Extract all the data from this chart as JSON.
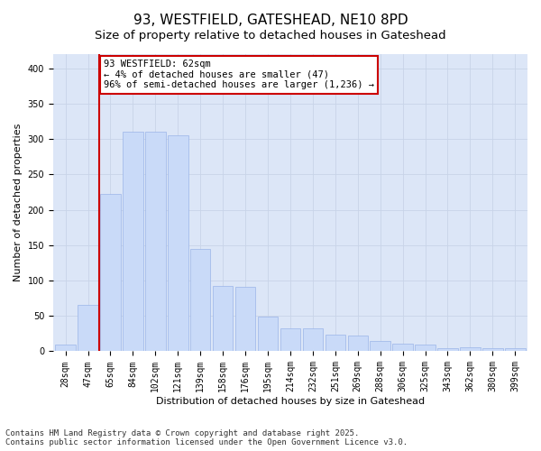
{
  "title": "93, WESTFIELD, GATESHEAD, NE10 8PD",
  "subtitle": "Size of property relative to detached houses in Gateshead",
  "xlabel": "Distribution of detached houses by size in Gateshead",
  "ylabel": "Number of detached properties",
  "categories": [
    "28sqm",
    "47sqm",
    "65sqm",
    "84sqm",
    "102sqm",
    "121sqm",
    "139sqm",
    "158sqm",
    "176sqm",
    "195sqm",
    "214sqm",
    "232sqm",
    "251sqm",
    "269sqm",
    "288sqm",
    "306sqm",
    "325sqm",
    "343sqm",
    "362sqm",
    "380sqm",
    "399sqm"
  ],
  "values": [
    9,
    65,
    222,
    310,
    310,
    305,
    145,
    92,
    91,
    49,
    33,
    32,
    23,
    22,
    15,
    11,
    10,
    5,
    6,
    4,
    4
  ],
  "bar_color": "#c9daf8",
  "bar_edge_color": "#9ab5e8",
  "grid_color": "#c8d4e8",
  "background_color": "#dce6f7",
  "vline_x": 2.0,
  "vline_color": "#cc0000",
  "annotation_text": "93 WESTFIELD: 62sqm\n← 4% of detached houses are smaller (47)\n96% of semi-detached houses are larger (1,236) →",
  "annotation_box_facecolor": "#ffffff",
  "annotation_box_edgecolor": "#cc0000",
  "ylim": [
    0,
    420
  ],
  "yticks": [
    0,
    50,
    100,
    150,
    200,
    250,
    300,
    350,
    400
  ],
  "footer_line1": "Contains HM Land Registry data © Crown copyright and database right 2025.",
  "footer_line2": "Contains public sector information licensed under the Open Government Licence v3.0.",
  "title_fontsize": 11,
  "xlabel_fontsize": 8,
  "ylabel_fontsize": 8,
  "tick_fontsize": 7,
  "footer_fontsize": 6.5,
  "annotation_fontsize": 7.5
}
